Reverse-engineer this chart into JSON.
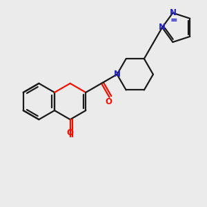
{
  "bg_color": "#ebebeb",
  "bond_color": "#1a1a1a",
  "oxygen_color": "#ee1100",
  "nitrogen_color": "#2222cc",
  "lw": 1.6,
  "xlim": [
    0,
    10
  ],
  "ylim": [
    0,
    10
  ]
}
